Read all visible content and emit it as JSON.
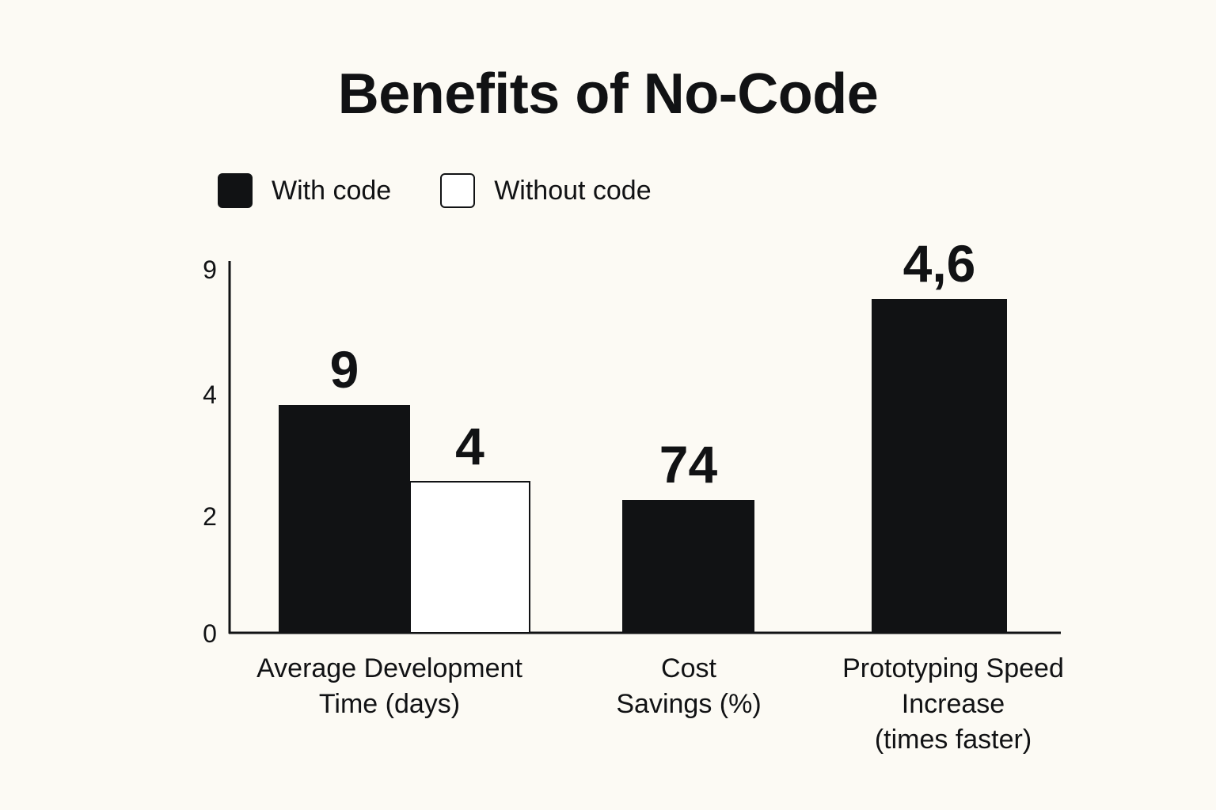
{
  "colors": {
    "background": "#fcfaf4",
    "with_code": "#111214",
    "without_code": "#ffffff",
    "ink": "#111214"
  },
  "chart_data": {
    "type": "bar",
    "title": "Benefits of No-Code",
    "legend_position": "top-left",
    "xlabel": "",
    "ylabel": "",
    "y_ticks": [
      "0",
      "2",
      "4",
      "9"
    ],
    "categories": [
      [
        "Average Development",
        "Time (days)"
      ],
      [
        "Cost",
        "Savings (%)"
      ],
      [
        "Prototyping Speed",
        "Increase",
        "(times faster)"
      ]
    ],
    "series": [
      {
        "name": "With code",
        "values": [
          9,
          74,
          4.6
        ],
        "labels": [
          "9",
          "74",
          "4,6"
        ]
      },
      {
        "name": "Without code",
        "values": [
          4,
          null,
          null
        ],
        "labels": [
          "4",
          "",
          ""
        ]
      }
    ]
  }
}
